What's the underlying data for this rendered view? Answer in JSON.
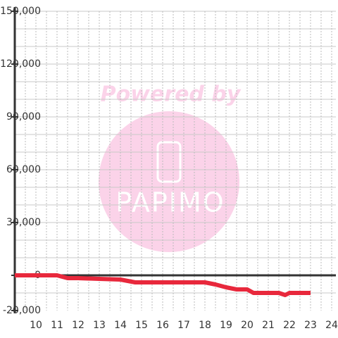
{
  "chart_data": {
    "type": "line",
    "watermark": {
      "top": "Powered by",
      "brand": "PAPIMO"
    },
    "x": [
      9,
      10,
      11,
      11.5,
      12,
      13,
      14,
      14.7,
      15,
      16,
      17,
      18,
      18.5,
      19,
      19.5,
      20,
      20.3,
      21,
      21.5,
      21.8,
      22,
      23
    ],
    "series": [
      {
        "color": "#e8283c",
        "values": [
          0,
          0,
          0,
          -1600,
          -1600,
          -2000,
          -2400,
          -4000,
          -4000,
          -4000,
          -4000,
          -4000,
          -5200,
          -6800,
          -8000,
          -8000,
          -10000,
          -10000,
          -10000,
          -11200,
          -10000,
          -10000
        ]
      }
    ],
    "xlim": [
      9,
      24.2
    ],
    "xticks": [
      10,
      11,
      12,
      13,
      14,
      15,
      16,
      17,
      18,
      19,
      20,
      21,
      22,
      23,
      24
    ],
    "xgrid": [
      9.5,
      10,
      10.5,
      11,
      11.5,
      12,
      12.5,
      13,
      13.5,
      14,
      14.5,
      15,
      15.5,
      16,
      16.5,
      17,
      17.5,
      18,
      18.5,
      19,
      19.5,
      20,
      20.5,
      21,
      21.5,
      22,
      22.5,
      23,
      23.5,
      24
    ],
    "ylim": [
      -20000,
      150000
    ],
    "yticks": [
      {
        "value": -20000,
        "label": "-20,000"
      },
      0,
      {
        "value": 30000,
        "label": "30,000"
      },
      {
        "value": 60000,
        "label": "60,000"
      },
      {
        "value": 90000,
        "label": "90,000"
      },
      {
        "value": 120000,
        "label": "120,000"
      },
      {
        "value": 150000,
        "label": "150,000"
      }
    ],
    "ygrid": [
      -10000,
      10000,
      20000,
      30000,
      40000,
      50000,
      60000,
      70000,
      80000,
      90000,
      100000,
      110000,
      120000,
      130000,
      140000,
      150000
    ]
  }
}
